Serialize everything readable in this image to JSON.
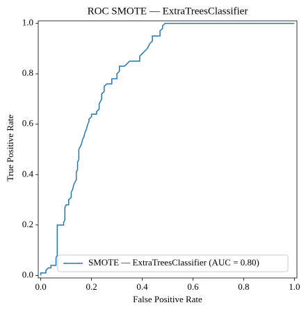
{
  "chart_data": {
    "type": "line",
    "title": "ROC SMOTE — ExtraTreesClassifier",
    "x_label": "False Positive Rate",
    "y_label": "True Positive Rate",
    "xlim": [
      -0.01,
      1.01
    ],
    "ylim": [
      -0.01,
      1.01
    ],
    "xticks": [
      {
        "value": 0,
        "label": "0.0"
      },
      0.2,
      0.4,
      0.6,
      0.8,
      {
        "value": 1,
        "label": "1.0"
      }
    ],
    "yticks": [
      {
        "value": 0,
        "label": "0.0"
      },
      0.2,
      0.4,
      0.6,
      0.8,
      {
        "value": 1,
        "label": "1.0"
      }
    ],
    "legend": "lower right",
    "x": [
      0,
      0,
      0.02,
      0.02,
      0.03,
      0.04,
      0.04,
      0.06,
      0.06,
      0.065,
      0.065,
      0.09,
      0.09,
      0.095,
      0.095,
      0.1,
      0.11,
      0.11,
      0.12,
      0.12,
      0.125,
      0.13,
      0.135,
      0.14,
      0.14,
      0.145,
      0.145,
      0.15,
      0.15,
      0.16,
      0.165,
      0.17,
      0.175,
      0.18,
      0.185,
      0.19,
      0.19,
      0.2,
      0.2,
      0.22,
      0.22,
      0.23,
      0.23,
      0.24,
      0.24,
      0.25,
      0.25,
      0.26,
      0.28,
      0.28,
      0.3,
      0.3,
      0.31,
      0.31,
      0.33,
      0.34,
      0.35,
      0.39,
      0.39,
      0.4,
      0.41,
      0.42,
      0.43,
      0.44,
      0.44,
      0.47,
      0.47,
      0.48,
      0.48,
      0.49,
      1.0
    ],
    "series": [
      {
        "name": "SMOTE — ExtraTreesClassifier (AUC = 0.80)",
        "color": "#1f77b4",
        "values": [
          0,
          0.01,
          0.01,
          0.02,
          0.03,
          0.03,
          0.04,
          0.04,
          0.07,
          0.08,
          0.2,
          0.2,
          0.21,
          0.22,
          0.27,
          0.28,
          0.28,
          0.3,
          0.31,
          0.33,
          0.34,
          0.36,
          0.37,
          0.38,
          0.41,
          0.42,
          0.45,
          0.46,
          0.5,
          0.52,
          0.54,
          0.55,
          0.57,
          0.58,
          0.6,
          0.61,
          0.62,
          0.63,
          0.64,
          0.64,
          0.65,
          0.66,
          0.68,
          0.7,
          0.72,
          0.73,
          0.75,
          0.76,
          0.76,
          0.78,
          0.78,
          0.8,
          0.81,
          0.83,
          0.83,
          0.84,
          0.85,
          0.85,
          0.87,
          0.88,
          0.89,
          0.9,
          0.92,
          0.93,
          0.95,
          0.95,
          0.97,
          0.98,
          0.99,
          1.0,
          1.0
        ]
      }
    ]
  }
}
